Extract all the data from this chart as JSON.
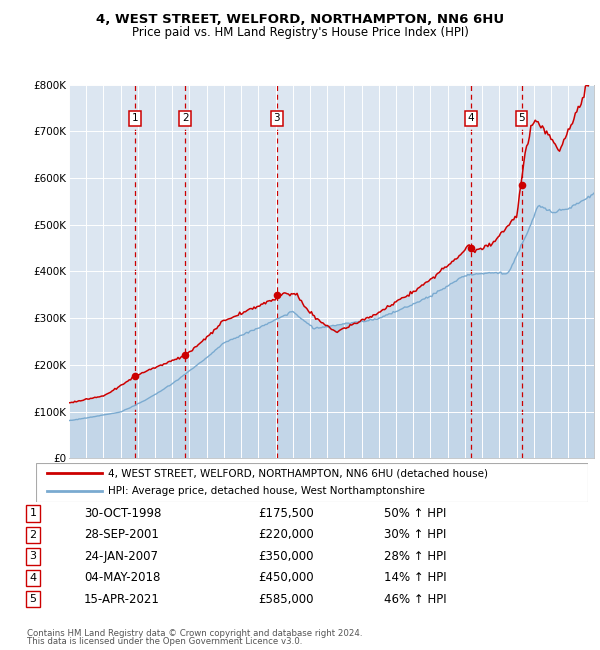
{
  "title1": "4, WEST STREET, WELFORD, NORTHAMPTON, NN6 6HU",
  "title2": "Price paid vs. HM Land Registry's House Price Index (HPI)",
  "background_color": "#dce6f1",
  "plot_bg_color": "#dce6f1",
  "grid_color": "#ffffff",
  "transactions": [
    {
      "num": 1,
      "date_str": "30-OCT-1998",
      "year": 1998.83,
      "price": 175500,
      "pct": "50% ↑ HPI"
    },
    {
      "num": 2,
      "date_str": "28-SEP-2001",
      "year": 2001.75,
      "price": 220000,
      "pct": "30% ↑ HPI"
    },
    {
      "num": 3,
      "date_str": "24-JAN-2007",
      "year": 2007.07,
      "price": 350000,
      "pct": "28% ↑ HPI"
    },
    {
      "num": 4,
      "date_str": "04-MAY-2018",
      "year": 2018.34,
      "price": 450000,
      "pct": "14% ↑ HPI"
    },
    {
      "num": 5,
      "date_str": "15-APR-2021",
      "year": 2021.29,
      "price": 585000,
      "pct": "46% ↑ HPI"
    }
  ],
  "legend_line1": "4, WEST STREET, WELFORD, NORTHAMPTON, NN6 6HU (detached house)",
  "legend_line2": "HPI: Average price, detached house, West Northamptonshire",
  "footer1": "Contains HM Land Registry data © Crown copyright and database right 2024.",
  "footer2": "This data is licensed under the Open Government Licence v3.0.",
  "red_color": "#cc0000",
  "blue_color": "#7aaad0",
  "xmin": 1995.0,
  "xmax": 2025.5,
  "ymin": 0,
  "ymax": 800000,
  "yticks": [
    0,
    100000,
    200000,
    300000,
    400000,
    500000,
    600000,
    700000,
    800000
  ],
  "ylabels": [
    "£0",
    "£100K",
    "£200K",
    "£300K",
    "£400K",
    "£500K",
    "£600K",
    "£700K",
    "£800K"
  ]
}
